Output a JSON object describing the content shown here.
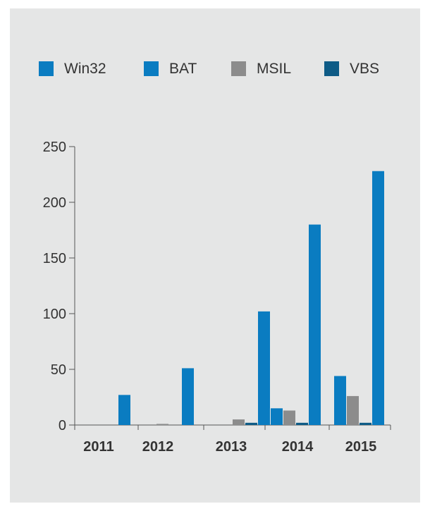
{
  "chart_data": {
    "type": "bar",
    "title": "",
    "xlabel": "",
    "ylabel": "",
    "categories": [
      "2011",
      "2012",
      "2013",
      "2014",
      "2015"
    ],
    "series": [
      {
        "name": "Win32",
        "color": "#0a7cc1",
        "values": [
          0,
          0,
          0,
          15,
          44
        ]
      },
      {
        "name": "MSIL",
        "color": "#8c8c8c",
        "values": [
          0,
          1,
          5,
          13,
          26
        ]
      },
      {
        "name": "VBS",
        "color": "#0e5b86",
        "values": [
          0,
          0,
          2,
          2,
          2
        ]
      },
      {
        "name": "BAT",
        "color": "#0a7cc1",
        "values": [
          27,
          51,
          102,
          180,
          228
        ]
      }
    ],
    "ylim": [
      0,
      250
    ],
    "yticks": [
      "0",
      "50",
      "100",
      "150",
      "200",
      "250"
    ],
    "grid": false,
    "legend_position": "top",
    "legend": [
      {
        "name": "Win32",
        "color": "#0a7cc1"
      },
      {
        "name": "BAT",
        "color": "#0a7cc1"
      },
      {
        "name": "MSIL",
        "color": "#8c8c8c"
      },
      {
        "name": "VBS",
        "color": "#0e5b86"
      }
    ]
  }
}
